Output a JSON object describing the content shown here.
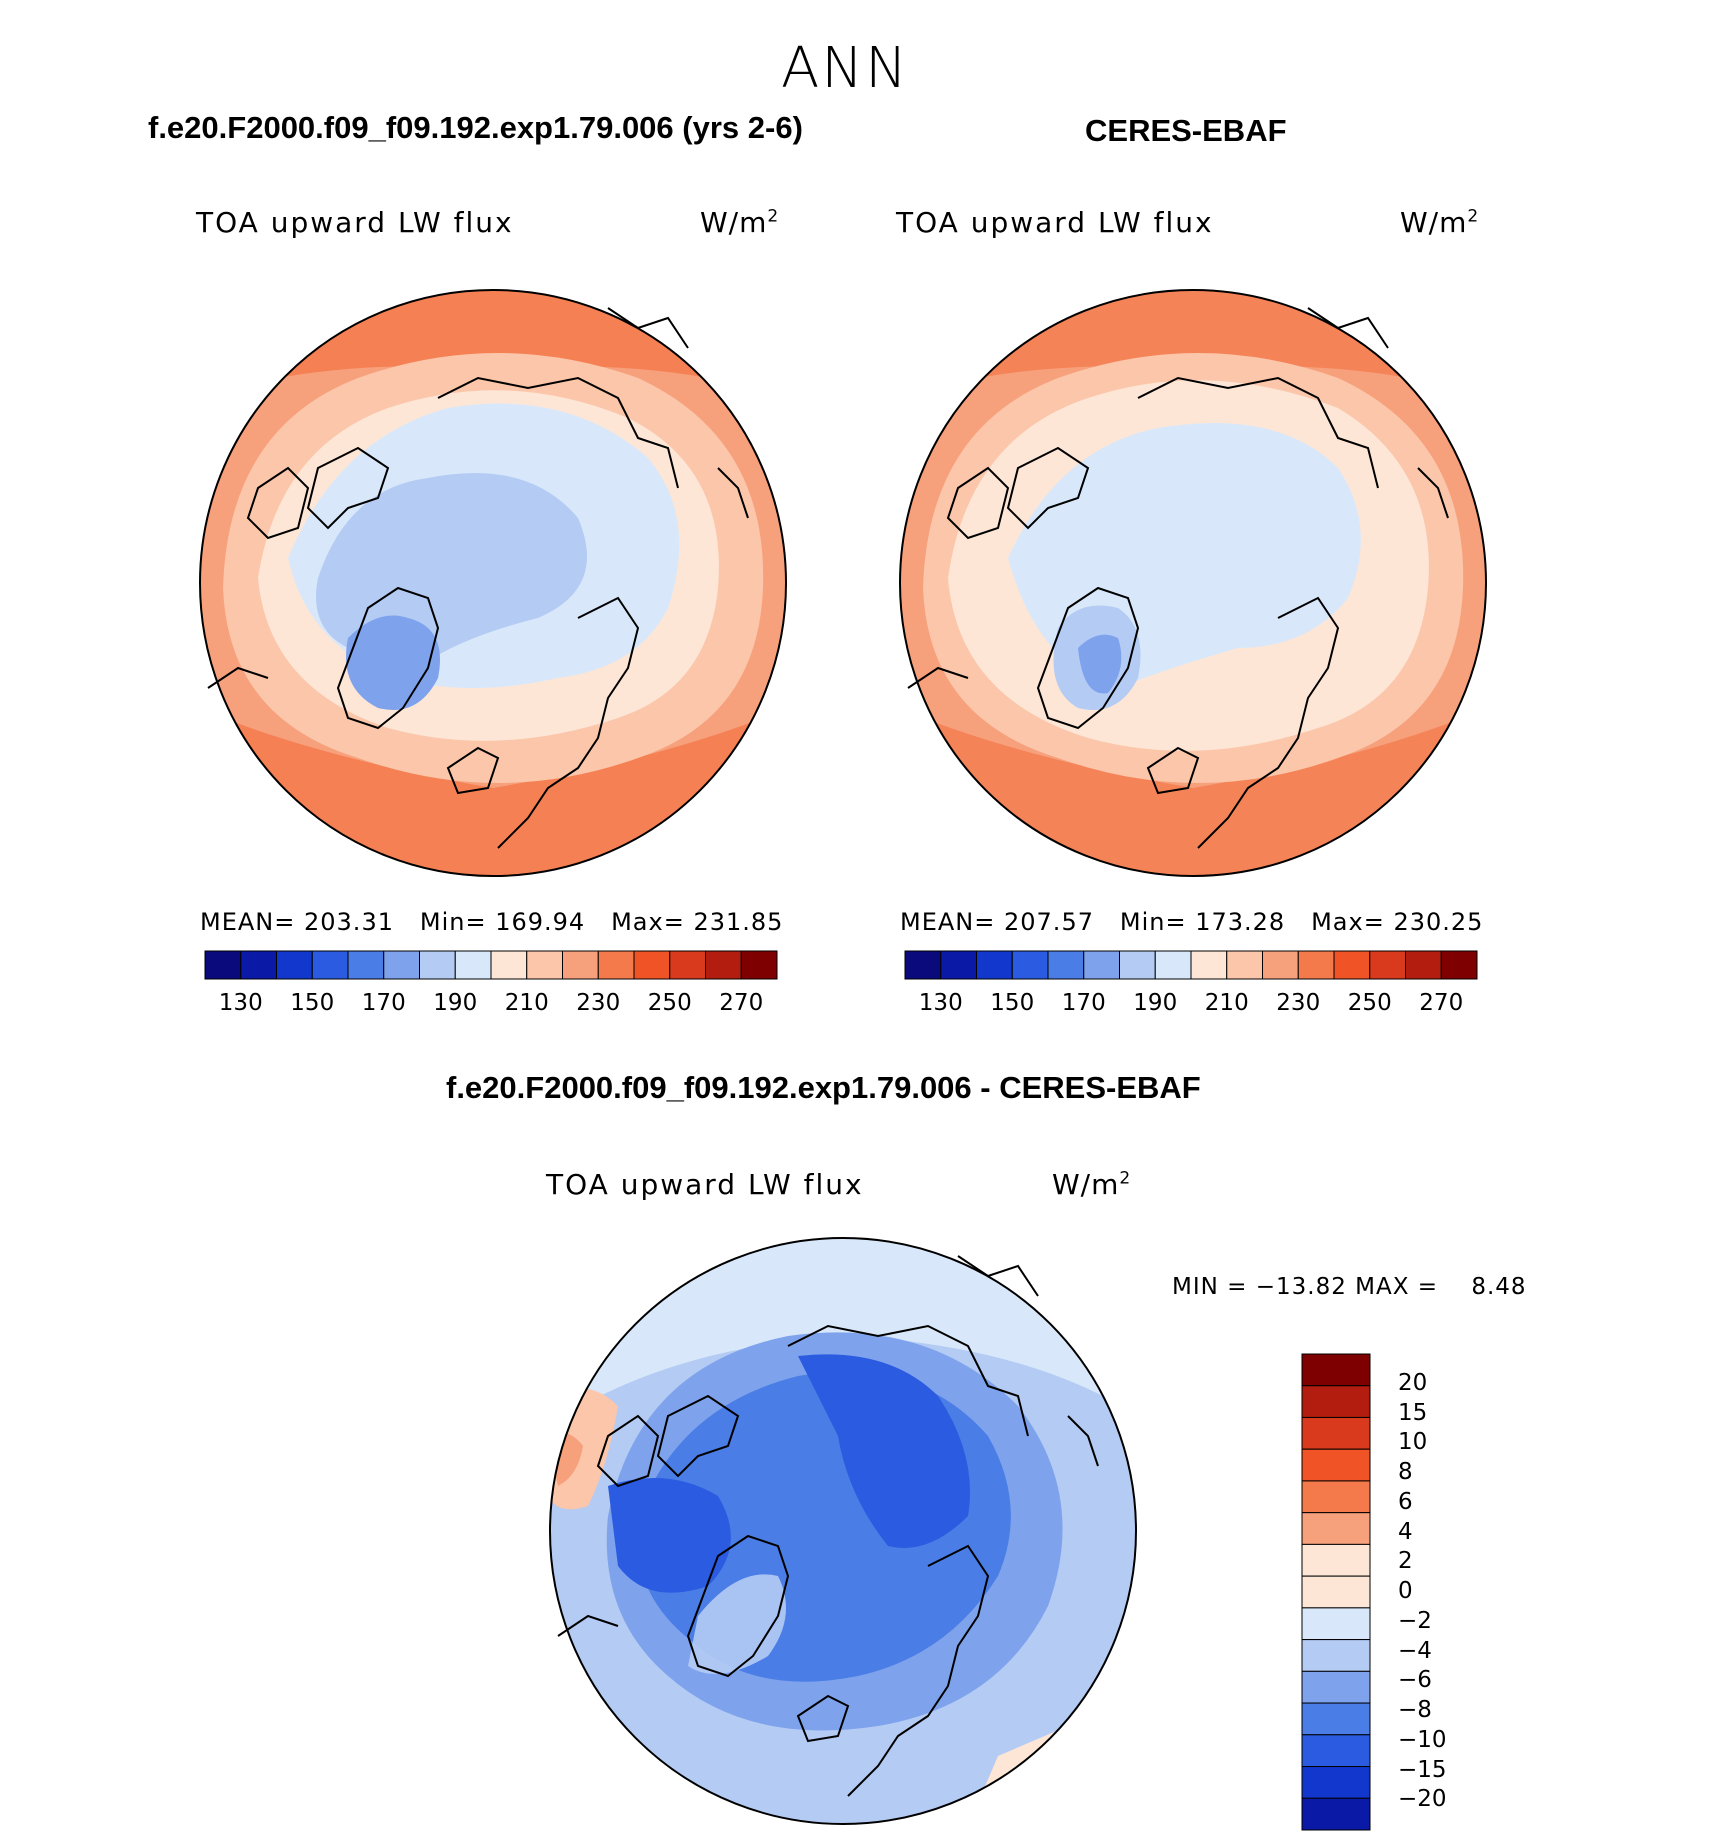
{
  "figure": {
    "season": "ANN"
  },
  "panels": [
    {
      "case_title": "f.e20.F2000.f09_f09.192.exp1.79.006 (yrs 2-6)",
      "variable": "TOA upward LW flux",
      "units_base": "W/m",
      "units_sup": "2",
      "mean_label": "MEAN=",
      "mean": "203.31",
      "min_label": "Min=",
      "min": "169.94",
      "max_label": "Max=",
      "max": "231.85"
    },
    {
      "case_title": "CERES-EBAF",
      "variable": "TOA upward LW flux",
      "units_base": "W/m",
      "units_sup": "2",
      "mean_label": "MEAN=",
      "mean": "207.57",
      "min_label": "Min=",
      "min": "173.28",
      "max_label": "Max=",
      "max": "230.25"
    },
    {
      "case_title": "f.e20.F2000.f09_f09.192.exp1.79.006 - CERES-EBAF",
      "variable": "TOA upward LW flux",
      "units_base": "W/m",
      "units_sup": "2",
      "minmax_text": "MIN = −13.82 MAX =    8.48"
    }
  ],
  "chart_data": [
    {
      "type": "heatmap",
      "projection": "north-polar-stereographic",
      "title": "f.e20.F2000.f09_f09.192.exp1.79.006 (yrs 2-6)",
      "variable": "TOA upward LW flux",
      "units": "W/m2",
      "mean": 203.31,
      "min": 169.94,
      "max": 231.85,
      "colorbar_ticks": [
        130,
        150,
        170,
        190,
        210,
        230,
        250,
        270
      ],
      "contour_levels": [
        130,
        140,
        150,
        160,
        170,
        180,
        190,
        200,
        210,
        220,
        230,
        240,
        250,
        260,
        270
      ]
    },
    {
      "type": "heatmap",
      "projection": "north-polar-stereographic",
      "title": "CERES-EBAF",
      "variable": "TOA upward LW flux",
      "units": "W/m2",
      "mean": 207.57,
      "min": 173.28,
      "max": 230.25,
      "colorbar_ticks": [
        130,
        150,
        170,
        190,
        210,
        230,
        250,
        270
      ],
      "contour_levels": [
        130,
        140,
        150,
        160,
        170,
        180,
        190,
        200,
        210,
        220,
        230,
        240,
        250,
        260,
        270
      ]
    },
    {
      "type": "heatmap",
      "projection": "north-polar-stereographic",
      "title": "f.e20.F2000.f09_f09.192.exp1.79.006 - CERES-EBAF",
      "variable": "TOA upward LW flux",
      "units": "W/m2",
      "min": -13.82,
      "max": 8.48,
      "colorbar_ticks": [
        "20",
        "15",
        "10",
        "8",
        "6",
        "4",
        "2",
        "0",
        "−2",
        "−4",
        "−6",
        "−8",
        "−10",
        "−15",
        "−20"
      ]
    }
  ],
  "colors": {
    "abs_palette": [
      "#0a0a7d",
      "#0a19a6",
      "#1237cc",
      "#2a5be0",
      "#4a7de6",
      "#7ea3ec",
      "#b4cbf4",
      "#d8e8fa",
      "#fde6d6",
      "#fbc6aa",
      "#f7a07c",
      "#f47a4c",
      "#f05326",
      "#d9391c",
      "#b31d0f",
      "#7f0000"
    ],
    "diff_palette": [
      "#7f0000",
      "#b31d0f",
      "#d9391c",
      "#f05326",
      "#f47a4c",
      "#f7a07c",
      "#fde6d6",
      "#d8e8fa",
      "#b4cbf4",
      "#7ea3ec",
      "#4a7de6",
      "#2a5be0",
      "#1237cc",
      "#0a19a6",
      "#0a0a7d"
    ]
  }
}
